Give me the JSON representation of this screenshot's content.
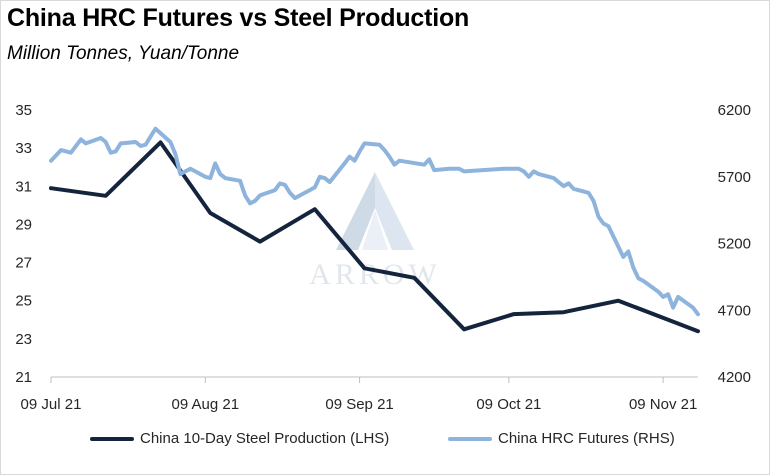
{
  "title": "China HRC Futures vs Steel Production",
  "subtitle": "Million Tonnes, Yuan/Tonne",
  "watermark": {
    "text": "ARROW",
    "icon": "arrow-mountain-logo"
  },
  "colors": {
    "production": "#14243d",
    "futures": "#8eb3dc",
    "axis": "#bfbfbf",
    "text": "#262626",
    "watermark": "#c9d3df"
  },
  "chart_data": {
    "type": "line",
    "title": "China HRC Futures vs Steel Production",
    "subtitle": "Million Tonnes, Yuan/Tonne",
    "x_tick_labels": [
      "09 Jul 21",
      "09 Aug 21",
      "09 Sep 21",
      "09 Oct 21",
      "09 Nov 21"
    ],
    "x_ticks": [
      "2021-07-09",
      "2021-08-09",
      "2021-09-09",
      "2021-10-09",
      "2021-11-09"
    ],
    "xlim": [
      "2021-07-09",
      "2021-11-16"
    ],
    "y_left": {
      "ticks": [
        21,
        23,
        25,
        27,
        29,
        31,
        33,
        35
      ],
      "ylim": [
        21,
        35
      ]
    },
    "y_right": {
      "ticks": [
        4200,
        4700,
        5200,
        5700,
        6200
      ],
      "ylim": [
        4200,
        6200
      ]
    },
    "grid": false,
    "legend": "bottom",
    "series": [
      {
        "name": "China 10-Day Steel Production (LHS)",
        "axis": "left",
        "color": "#14243d",
        "x": [
          "2021-07-09",
          "2021-07-20",
          "2021-07-31",
          "2021-08-10",
          "2021-08-20",
          "2021-08-31",
          "2021-09-10",
          "2021-09-20",
          "2021-09-30",
          "2021-10-10",
          "2021-10-20",
          "2021-10-31",
          "2021-11-10",
          "2021-11-16"
        ],
        "values": [
          30.9,
          30.5,
          33.3,
          29.6,
          28.1,
          29.8,
          26.7,
          26.2,
          23.5,
          24.3,
          24.4,
          25.0,
          24.0,
          23.4
        ]
      },
      {
        "name": "China HRC Futures (RHS)",
        "axis": "right",
        "color": "#8eb3dc",
        "x": [
          "2021-07-09",
          "2021-07-11",
          "2021-07-13",
          "2021-07-15",
          "2021-07-16",
          "2021-07-19",
          "2021-07-20",
          "2021-07-21",
          "2021-07-22",
          "2021-07-23",
          "2021-07-26",
          "2021-07-27",
          "2021-07-28",
          "2021-07-29",
          "2021-07-30",
          "2021-08-02",
          "2021-08-03",
          "2021-08-04",
          "2021-08-05",
          "2021-08-06",
          "2021-08-09",
          "2021-08-10",
          "2021-08-11",
          "2021-08-12",
          "2021-08-13",
          "2021-08-16",
          "2021-08-17",
          "2021-08-18",
          "2021-08-19",
          "2021-08-20",
          "2021-08-23",
          "2021-08-24",
          "2021-08-25",
          "2021-08-26",
          "2021-08-27",
          "2021-08-30",
          "2021-08-31",
          "2021-09-01",
          "2021-09-02",
          "2021-09-03",
          "2021-09-06",
          "2021-09-07",
          "2021-09-08",
          "2021-09-09",
          "2021-09-10",
          "2021-09-13",
          "2021-09-14",
          "2021-09-15",
          "2021-09-16",
          "2021-09-17",
          "2021-09-22",
          "2021-09-23",
          "2021-09-24",
          "2021-09-27",
          "2021-09-28",
          "2021-09-29",
          "2021-09-30",
          "2021-10-08",
          "2021-10-11",
          "2021-10-12",
          "2021-10-13",
          "2021-10-14",
          "2021-10-15",
          "2021-10-18",
          "2021-10-19",
          "2021-10-20",
          "2021-10-21",
          "2021-10-22",
          "2021-10-25",
          "2021-10-26",
          "2021-10-27",
          "2021-10-28",
          "2021-10-29",
          "2021-11-01",
          "2021-11-02",
          "2021-11-03",
          "2021-11-04",
          "2021-11-05",
          "2021-11-08",
          "2021-11-09",
          "2021-11-10",
          "2021-11-11",
          "2021-11-12",
          "2021-11-15",
          "2021-11-16"
        ],
        "values": [
          5820,
          5900,
          5880,
          5980,
          5950,
          5990,
          5960,
          5880,
          5890,
          5950,
          5960,
          5930,
          5940,
          6000,
          6060,
          5960,
          5870,
          5720,
          5740,
          5760,
          5700,
          5690,
          5800,
          5720,
          5690,
          5670,
          5560,
          5500,
          5520,
          5560,
          5600,
          5650,
          5640,
          5580,
          5540,
          5600,
          5620,
          5700,
          5690,
          5660,
          5800,
          5850,
          5820,
          5890,
          5950,
          5940,
          5900,
          5850,
          5790,
          5820,
          5790,
          5830,
          5750,
          5760,
          5760,
          5760,
          5740,
          5760,
          5760,
          5740,
          5700,
          5740,
          5720,
          5690,
          5660,
          5630,
          5650,
          5610,
          5580,
          5520,
          5400,
          5350,
          5330,
          5100,
          5140,
          5020,
          4940,
          4920,
          4840,
          4800,
          4820,
          4720,
          4800,
          4720,
          4670
        ]
      }
    ]
  },
  "legend": {
    "production_label": "China 10-Day Steel Production (LHS)",
    "futures_label": "China HRC Futures (RHS)"
  }
}
